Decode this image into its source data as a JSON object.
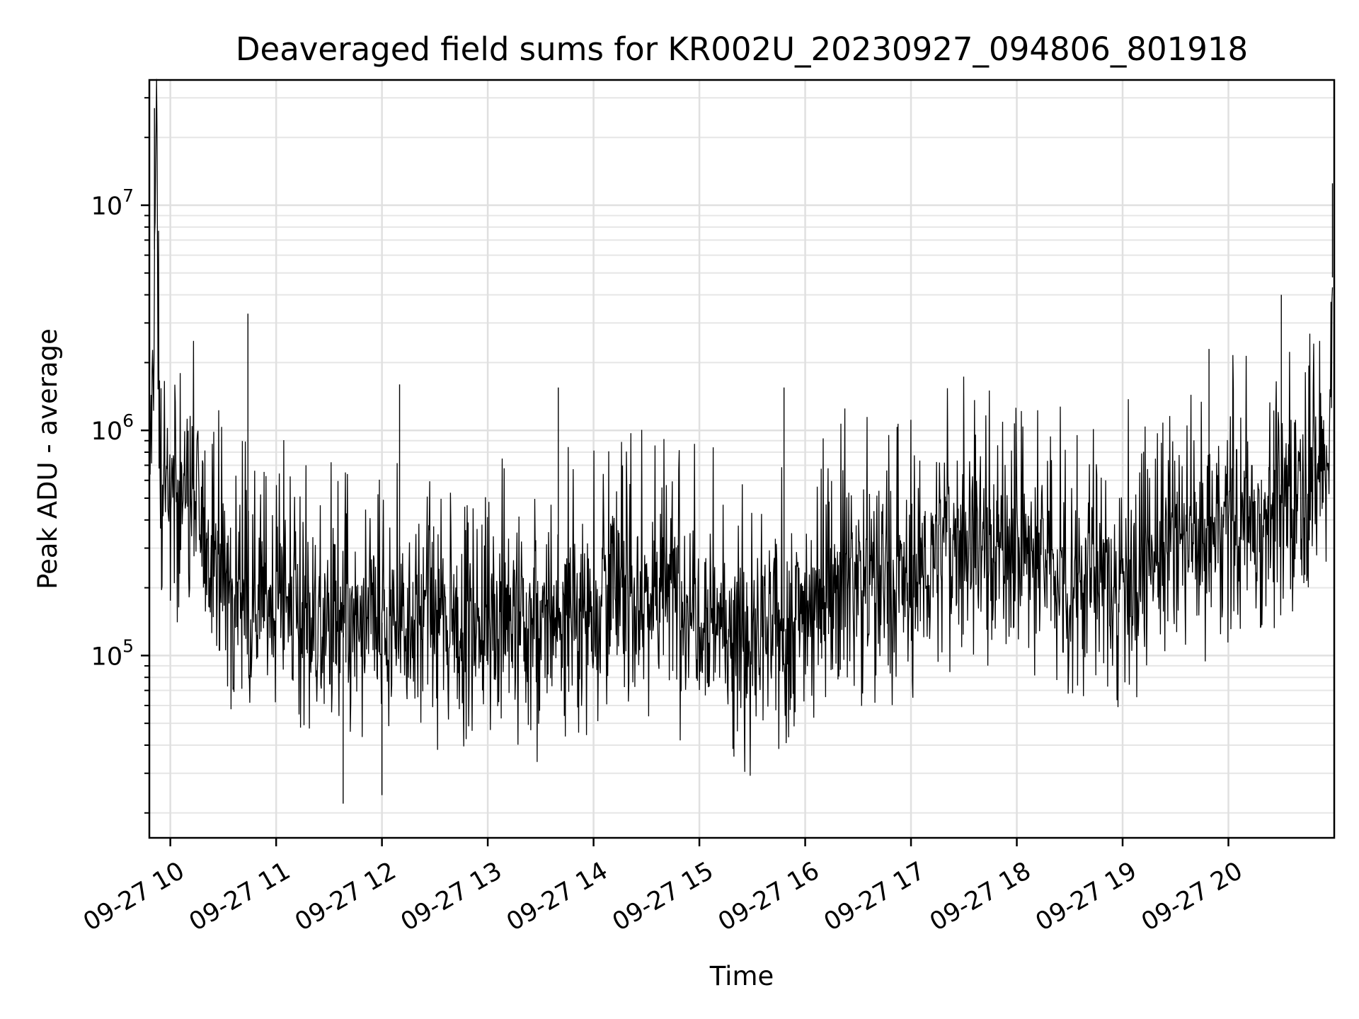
{
  "chart_data": {
    "type": "line",
    "title": "Deaveraged field sums for KR002U_20230927_094806_801918",
    "xlabel": "Time",
    "ylabel": "Peak ADU - average",
    "yscale": "log",
    "ylim": [
      15500,
      36000000
    ],
    "xlim": [
      "2023-09-27 09:48:06",
      "2023-09-27 21:00:00"
    ],
    "grid": true,
    "grid_minor": true,
    "line_color": "#000000",
    "x_ticks": [
      {
        "t": "2023-09-27 10:00",
        "label": "09-27 10"
      },
      {
        "t": "2023-09-27 11:00",
        "label": "09-27 11"
      },
      {
        "t": "2023-09-27 12:00",
        "label": "09-27 12"
      },
      {
        "t": "2023-09-27 13:00",
        "label": "09-27 13"
      },
      {
        "t": "2023-09-27 14:00",
        "label": "09-27 14"
      },
      {
        "t": "2023-09-27 15:00",
        "label": "09-27 15"
      },
      {
        "t": "2023-09-27 16:00",
        "label": "09-27 16"
      },
      {
        "t": "2023-09-27 17:00",
        "label": "09-27 17"
      },
      {
        "t": "2023-09-27 18:00",
        "label": "09-27 18"
      },
      {
        "t": "2023-09-27 19:00",
        "label": "09-27 19"
      },
      {
        "t": "2023-09-27 20:00",
        "label": "09-27 20"
      }
    ],
    "y_ticks": [
      {
        "value": 100000,
        "base": "10",
        "exp": "5"
      },
      {
        "value": 1000000,
        "base": "10",
        "exp": "6"
      },
      {
        "value": 10000000,
        "base": "10",
        "exp": "7"
      }
    ],
    "series": [
      {
        "x": [
          "2023-09-27 09:48",
          "2023-09-27 09:50",
          "2023-09-27 09:52",
          "2023-09-27 09:54",
          "2023-09-27 09:56",
          "2023-09-27 10:00",
          "2023-09-27 10:05",
          "2023-09-27 10:10",
          "2023-09-27 10:15",
          "2023-09-27 10:20",
          "2023-09-27 10:25",
          "2023-09-27 10:30",
          "2023-09-27 10:40",
          "2023-09-27 10:50",
          "2023-09-27 11:00",
          "2023-09-27 11:10",
          "2023-09-27 11:20",
          "2023-09-27 11:30",
          "2023-09-27 11:40",
          "2023-09-27 11:50",
          "2023-09-27 12:00",
          "2023-09-27 12:10",
          "2023-09-27 12:20",
          "2023-09-27 12:30",
          "2023-09-27 12:40",
          "2023-09-27 12:50",
          "2023-09-27 13:00",
          "2023-09-27 13:10",
          "2023-09-27 13:20",
          "2023-09-27 13:30",
          "2023-09-27 13:40",
          "2023-09-27 13:50",
          "2023-09-27 14:00",
          "2023-09-27 14:05",
          "2023-09-27 14:10",
          "2023-09-27 14:20",
          "2023-09-27 14:30",
          "2023-09-27 14:40",
          "2023-09-27 14:50",
          "2023-09-27 15:00",
          "2023-09-27 15:10",
          "2023-09-27 15:20",
          "2023-09-27 15:30",
          "2023-09-27 15:40",
          "2023-09-27 15:50",
          "2023-09-27 16:00",
          "2023-09-27 16:10",
          "2023-09-27 16:20",
          "2023-09-27 16:30",
          "2023-09-27 16:40",
          "2023-09-27 16:50",
          "2023-09-27 17:00",
          "2023-09-27 17:10",
          "2023-09-27 17:20",
          "2023-09-27 17:30",
          "2023-09-27 17:40",
          "2023-09-27 17:50",
          "2023-09-27 18:00",
          "2023-09-27 18:10",
          "2023-09-27 18:20",
          "2023-09-27 18:30",
          "2023-09-27 18:40",
          "2023-09-27 18:50",
          "2023-09-27 19:00",
          "2023-09-27 19:10",
          "2023-09-27 19:20",
          "2023-09-27 19:30",
          "2023-09-27 19:40",
          "2023-09-27 19:50",
          "2023-09-27 20:00",
          "2023-09-27 20:10",
          "2023-09-27 20:20",
          "2023-09-27 20:30",
          "2023-09-27 20:40",
          "2023-09-27 20:50",
          "2023-09-27 20:57",
          "2023-09-27 21:00"
        ],
        "y": [
          580000,
          1500000,
          27000000,
          700000,
          550000,
          480000,
          520000,
          600000,
          420000,
          350000,
          280000,
          230000,
          210000,
          190000,
          180000,
          170000,
          150000,
          130000,
          125000,
          130000,
          140000,
          150000,
          155000,
          145000,
          140000,
          150000,
          155000,
          160000,
          140000,
          130000,
          150000,
          160000,
          160000,
          250000,
          200000,
          180000,
          190000,
          200000,
          190000,
          170000,
          150000,
          130000,
          110000,
          120000,
          130000,
          170000,
          200000,
          230000,
          240000,
          220000,
          200000,
          210000,
          260000,
          320000,
          340000,
          330000,
          310000,
          300000,
          270000,
          250000,
          230000,
          220000,
          220000,
          240000,
          260000,
          280000,
          320000,
          340000,
          360000,
          380000,
          400000,
          420000,
          480000,
          600000,
          650000,
          700000,
          12500000
        ]
      }
    ],
    "spikes": [
      {
        "x": "2023-09-27 09:51",
        "y": 27000000
      },
      {
        "x": "2023-09-27 10:44",
        "y": 3300000
      },
      {
        "x": "2023-09-27 12:10",
        "y": 1600000
      },
      {
        "x": "2023-09-27 13:40",
        "y": 1550000
      },
      {
        "x": "2023-09-27 15:48",
        "y": 1550000
      },
      {
        "x": "2023-09-27 19:49",
        "y": 2300000
      },
      {
        "x": "2023-09-27 20:30",
        "y": 4000000
      },
      {
        "x": "2023-09-27 20:59",
        "y": 12500000
      },
      {
        "x": "2023-09-27 11:38",
        "y": 22000
      },
      {
        "x": "2023-09-27 12:00",
        "y": 24000
      }
    ]
  }
}
